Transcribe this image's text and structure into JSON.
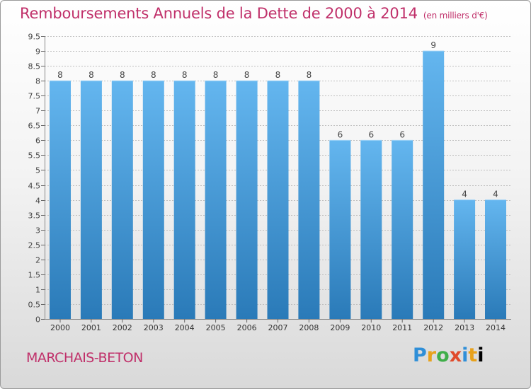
{
  "header": {
    "title": "Remboursements Annuels de la Dette de 2000 à 2014",
    "unit": "(en milliers d'€)"
  },
  "footer": {
    "commune": "MARCHAIS-BETON",
    "logo_letters": [
      "P",
      "r",
      "o",
      "x",
      "i",
      "t",
      "i"
    ]
  },
  "colors": {
    "title": "#c0306a",
    "bar_top": "#64b6ef",
    "bar_bottom": "#2a7ab8",
    "grid": "#bfbfbf"
  },
  "chart_data": {
    "type": "bar",
    "title": "Remboursements Annuels de la Dette de 2000 à 2014",
    "xlabel": "",
    "ylabel": "(en milliers d'€)",
    "categories": [
      "2000",
      "2001",
      "2002",
      "2003",
      "2004",
      "2005",
      "2006",
      "2007",
      "2008",
      "2009",
      "2010",
      "2011",
      "2012",
      "2013",
      "2014"
    ],
    "values": [
      8,
      8,
      8,
      8,
      8,
      8,
      8,
      8,
      8,
      6,
      6,
      6,
      9,
      4,
      4
    ],
    "data_labels": [
      "8",
      "8",
      "8",
      "8",
      "8",
      "8",
      "8",
      "8",
      "8",
      "6",
      "6",
      "6",
      "9",
      "4",
      "4"
    ],
    "ylim": [
      0,
      9.5
    ],
    "yticks": [
      0,
      0.5,
      1,
      1.5,
      2,
      2.5,
      3,
      3.5,
      4,
      4.5,
      5,
      5.5,
      6,
      6.5,
      7,
      7.5,
      8,
      8.5,
      9,
      9.5
    ],
    "ytick_labels": [
      "0",
      "0.5",
      "1",
      "1.5",
      "2",
      "2.5",
      "3",
      "3.5",
      "4",
      "4.5",
      "5",
      "5.5",
      "6",
      "6.5",
      "7",
      "7.5",
      "8",
      "8.5",
      "9",
      "9.5"
    ],
    "grid": true,
    "legend": "none"
  }
}
